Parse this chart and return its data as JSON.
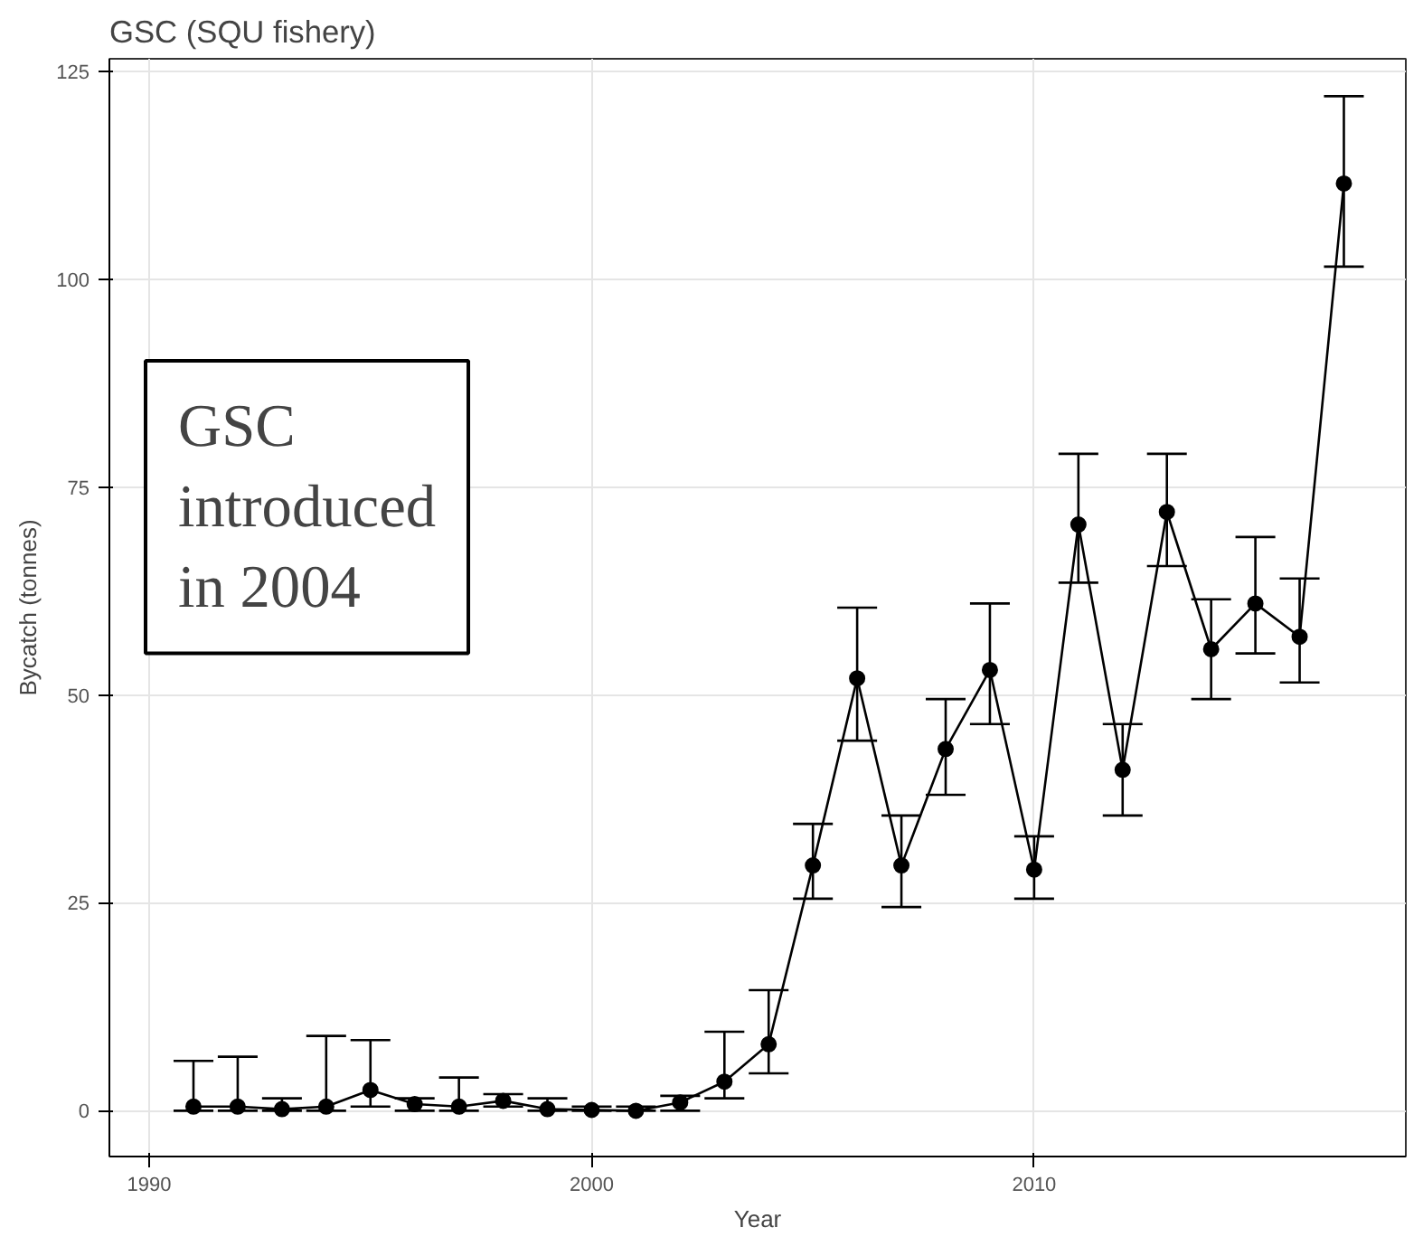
{
  "chart_data": {
    "type": "line",
    "title": "GSC (SQU fishery)",
    "xlabel": "Year",
    "ylabel": "Bycatch (tonnes)",
    "annotations": [
      "GSC\nintroduced\nin 2004"
    ],
    "x": [
      1991,
      1992,
      1993,
      1994,
      1995,
      1996,
      1997,
      1998,
      1999,
      2000,
      2001,
      2002,
      2003,
      2004,
      2005,
      2006,
      2007,
      2008,
      2009,
      2010,
      2011,
      2012,
      2013,
      2014,
      2015,
      2016,
      2017
    ],
    "series": [
      {
        "color": "#000000",
        "values": [
          0.5,
          0.5,
          0.2,
          0.5,
          2.5,
          0.8,
          0.5,
          1.2,
          0.2,
          0.1,
          0,
          1,
          3.5,
          8,
          29.5,
          52,
          29.5,
          43.5,
          53,
          29,
          70.5,
          41,
          72,
          55.5,
          61,
          57,
          111.5
        ],
        "errors": [
          [
            0,
            6
          ],
          [
            0,
            6.5
          ],
          [
            0,
            1.5
          ],
          [
            0,
            9
          ],
          [
            0.5,
            8.5
          ],
          [
            0,
            1.5
          ],
          [
            0,
            4
          ],
          [
            0.5,
            2
          ],
          [
            0,
            1.5
          ],
          [
            0,
            0.5
          ],
          [
            0,
            0.5
          ],
          [
            0,
            1.8
          ],
          [
            1.5,
            9.5
          ],
          [
            4.5,
            14.5
          ],
          [
            25.5,
            34.5
          ],
          [
            44.5,
            60.5
          ],
          [
            24.5,
            35.5
          ],
          [
            38,
            49.5
          ],
          [
            46.5,
            61
          ],
          [
            25.5,
            33
          ],
          [
            63.5,
            79
          ],
          [
            35.5,
            46.5
          ],
          [
            65.5,
            79
          ],
          [
            49.5,
            61.5
          ],
          [
            55,
            69
          ],
          [
            51.5,
            64
          ],
          [
            101.5,
            122
          ]
        ]
      }
    ],
    "xlim": [
      1989.1,
      2018.4
    ],
    "ylim": [
      -5.5,
      126.5
    ],
    "xticks": [
      1990,
      2000,
      2010
    ],
    "yticks": [
      0,
      25,
      50,
      75,
      100,
      125
    ],
    "grid": true,
    "marker": "circle",
    "line_style": "solid"
  }
}
